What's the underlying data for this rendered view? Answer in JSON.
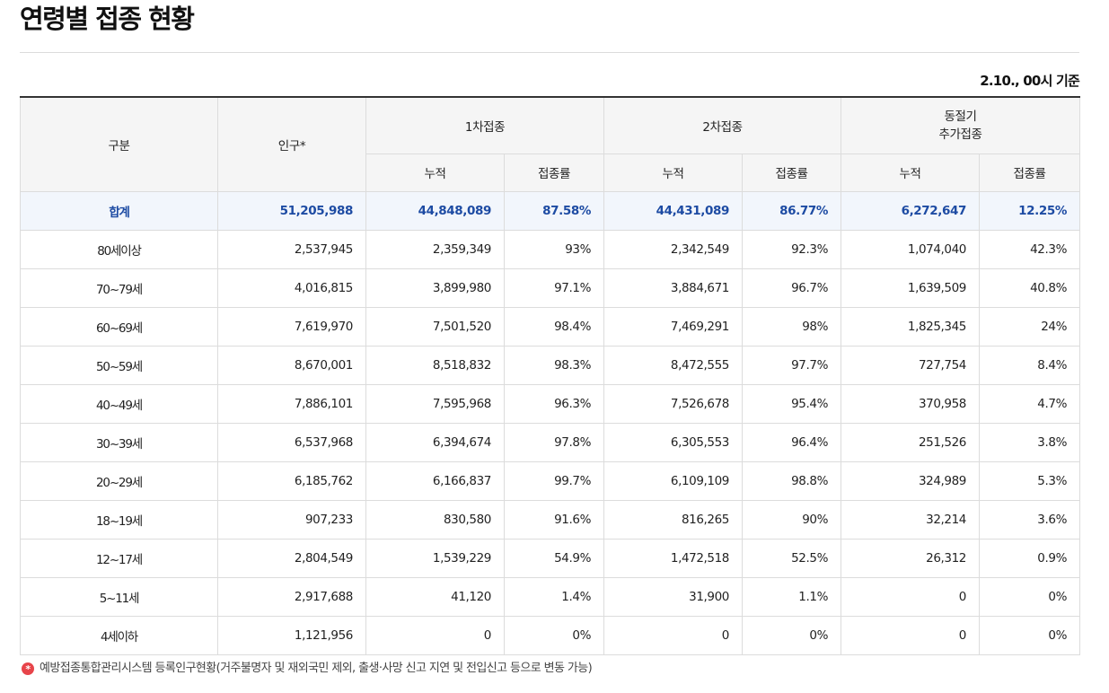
{
  "page_title": "연령별 접종 현황",
  "basis_text": "2.10., 00시 기준",
  "table": {
    "header": {
      "category": "구분",
      "population": "인구*",
      "dose1": "1차접종",
      "dose2": "2차접종",
      "winter_line1": "동절기",
      "winter_line2": "추가접종",
      "cumulative": "누적",
      "rate": "접종률"
    },
    "total": [
      "합계",
      "51,205,988",
      "44,848,089",
      "87.58%",
      "44,431,089",
      "86.77%",
      "6,272,647",
      "12.25%"
    ],
    "rows": [
      [
        "80세이상",
        "2,537,945",
        "2,359,349",
        "93%",
        "2,342,549",
        "92.3%",
        "1,074,040",
        "42.3%"
      ],
      [
        "70~79세",
        "4,016,815",
        "3,899,980",
        "97.1%",
        "3,884,671",
        "96.7%",
        "1,639,509",
        "40.8%"
      ],
      [
        "60~69세",
        "7,619,970",
        "7,501,520",
        "98.4%",
        "7,469,291",
        "98%",
        "1,825,345",
        "24%"
      ],
      [
        "50~59세",
        "8,670,001",
        "8,518,832",
        "98.3%",
        "8,472,555",
        "97.7%",
        "727,754",
        "8.4%"
      ],
      [
        "40~49세",
        "7,886,101",
        "7,595,968",
        "96.3%",
        "7,526,678",
        "95.4%",
        "370,958",
        "4.7%"
      ],
      [
        "30~39세",
        "6,537,968",
        "6,394,674",
        "97.8%",
        "6,305,553",
        "96.4%",
        "251,526",
        "3.8%"
      ],
      [
        "20~29세",
        "6,185,762",
        "6,166,837",
        "99.7%",
        "6,109,109",
        "98.8%",
        "324,989",
        "5.3%"
      ],
      [
        "18~19세",
        "907,233",
        "830,580",
        "91.6%",
        "816,265",
        "90%",
        "32,214",
        "3.6%"
      ],
      [
        "12~17세",
        "2,804,549",
        "1,539,229",
        "54.9%",
        "1,472,518",
        "52.5%",
        "26,312",
        "0.9%"
      ],
      [
        "5~11세",
        "2,917,688",
        "41,120",
        "1.4%",
        "31,900",
        "1.1%",
        "0",
        "0%"
      ],
      [
        "4세이하",
        "1,121,956",
        "0",
        "0%",
        "0",
        "0%",
        "0",
        "0%"
      ]
    ]
  },
  "footnote": {
    "icon": "asterisk-icon",
    "symbol": "*",
    "text": "예방접종통합관리시스템 등록인구현황(거주불명자 및 재외국민 제외, 출생·사망 신고 지연 및 전입신고 등으로 변동 가능)"
  },
  "colors": {
    "total_text": "#1d4ba3",
    "total_bg": "#f2f6fc",
    "header_bg": "#f5f5f5",
    "footnote_icon": "#e7444a"
  }
}
